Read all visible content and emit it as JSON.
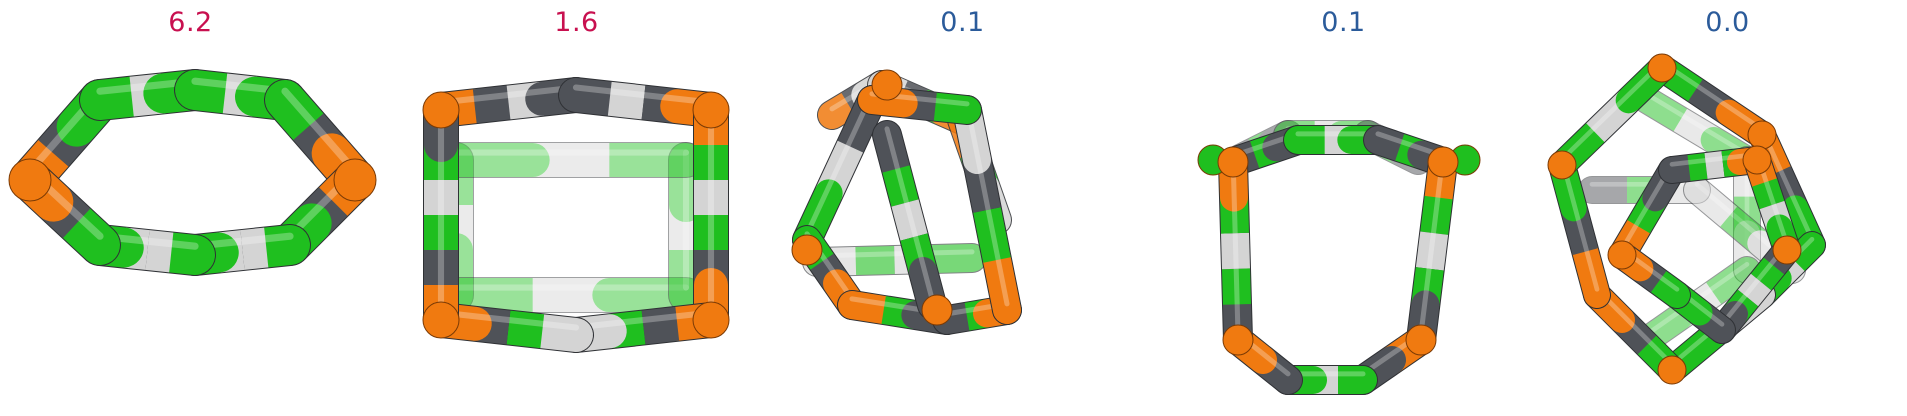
{
  "colors": {
    "magenta_label": "#c8104f",
    "blue_label": "#2b5b9a",
    "orange": "#f07a10",
    "dark_gray": "#4f5258",
    "green": "#1fbf1f",
    "light_gray": "#d4d4d4"
  },
  "panels": [
    {
      "label": "6.2",
      "label_color": "#c8104f"
    },
    {
      "label": "1.6",
      "label_color": "#c8104f"
    },
    {
      "label": "0.1",
      "label_color": "#2b5b9a"
    },
    {
      "label": "0.1",
      "label_color": "#2b5b9a"
    },
    {
      "label": "0.0",
      "label_color": "#2b5b9a"
    }
  ]
}
